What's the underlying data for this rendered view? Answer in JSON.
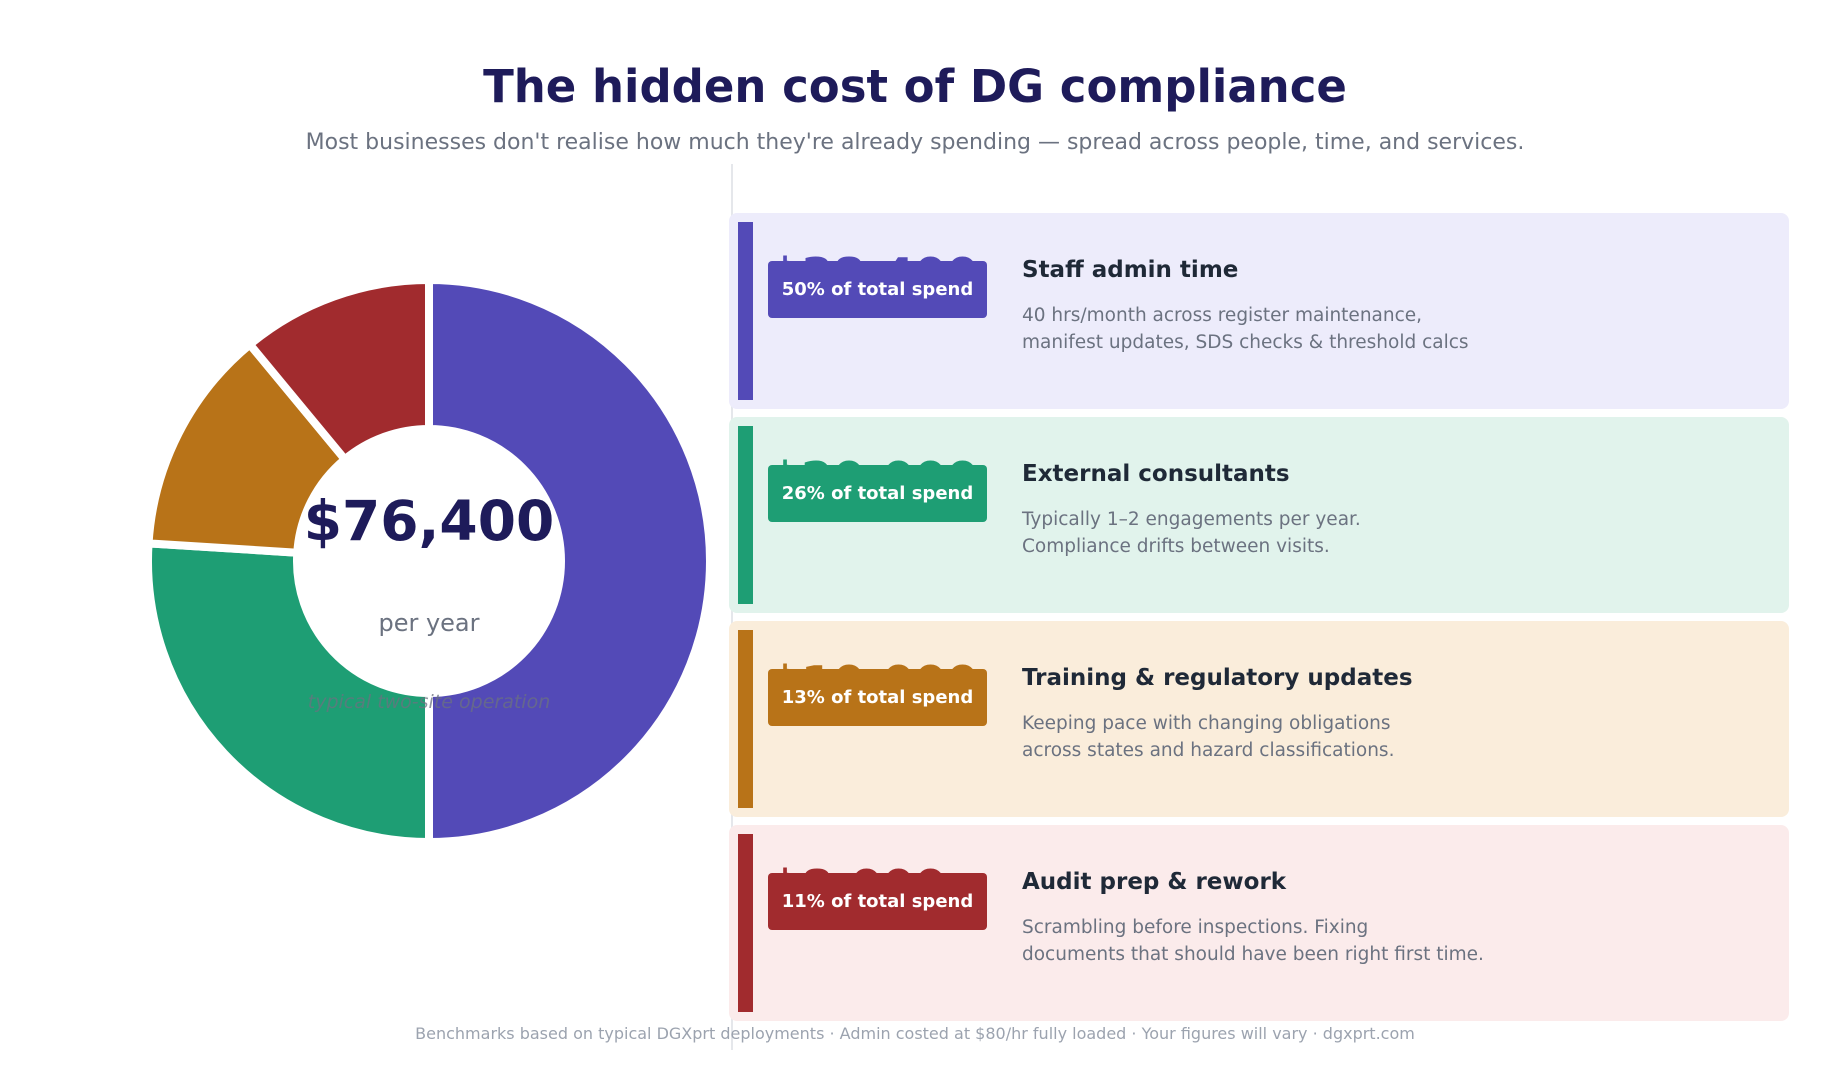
{
  "header": {
    "title": "The hidden cost of DG compliance",
    "subtitle": "Most businesses don't realise how much they're already spending — spread across people, time, and services."
  },
  "donut_center": {
    "total": "$76,400",
    "unit": "per year",
    "note": "typical two-site operation"
  },
  "cards": [
    {
      "amount": "$38,400",
      "badge": "50% of total spend",
      "title": "Staff admin time",
      "desc_line1": "40 hrs/month across register maintenance,",
      "desc_line2": "manifest updates, SDS checks & threshold calcs",
      "color": "#534ab7",
      "bg": "#edecfb"
    },
    {
      "amount": "$20,000",
      "badge": "26% of total spend",
      "title": "External consultants",
      "desc_line1": "Typically 1–2 engagements per year.",
      "desc_line2": "Compliance drifts between visits.",
      "color": "#1e9e74",
      "bg": "#e1f3ec"
    },
    {
      "amount": "$10,000",
      "badge": "13% of total spend",
      "title": "Training & regulatory updates",
      "desc_line1": "Keeping pace with changing obligations",
      "desc_line2": "across states and hazard classifications.",
      "color": "#b87318",
      "bg": "#faeddb"
    },
    {
      "amount": "$8,000",
      "badge": "11% of total spend",
      "title": "Audit prep & rework",
      "desc_line1": "Scrambling before inspections. Fixing",
      "desc_line2": "documents that should have been right first time.",
      "color": "#a12b2e",
      "bg": "#fbebeb"
    }
  ],
  "footer": {
    "text": "Benchmarks based on typical DGXprt deployments · Admin costed at $80/hr fully loaded · Your figures will vary  ·  dgxprt.com"
  },
  "chart_data": {
    "type": "pie",
    "subtype": "donut",
    "title": "The hidden cost of DG compliance",
    "center_label": "$76,400 per year",
    "categories": [
      "Staff admin time",
      "External consultants",
      "Training & regulatory updates",
      "Audit prep & rework"
    ],
    "values": [
      38400,
      20000,
      10000,
      8000
    ],
    "percentages": [
      50,
      26,
      13,
      11
    ],
    "colors": [
      "#534ab7",
      "#1e9e74",
      "#b87318",
      "#a12b2e"
    ],
    "total": 76400,
    "start_angle": "12 o'clock, clockwise"
  }
}
